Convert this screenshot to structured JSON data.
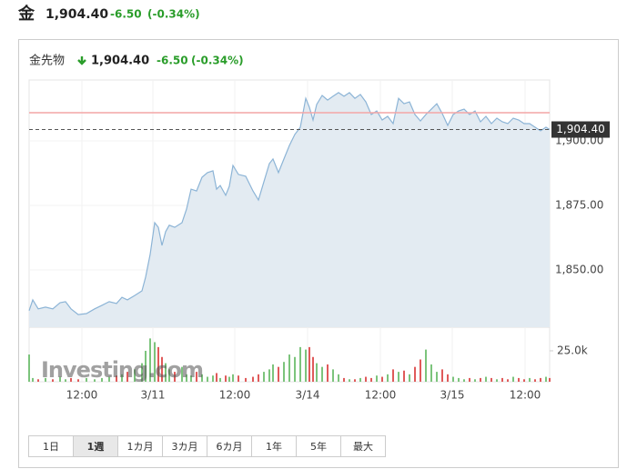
{
  "header": {
    "name": "金",
    "price": "1,904.40",
    "change": "-6.50",
    "change_pct": "(-0.34%)"
  },
  "chart_data": {
    "type": "area",
    "title": "金先物",
    "price": "1,904.40",
    "change": "-6.50",
    "change_pct": "(-0.34%)",
    "color": "#8cb4d6",
    "fill": "#e3ebf2",
    "x": [
      0,
      4,
      10,
      18,
      26,
      34,
      40,
      46,
      54,
      63,
      72,
      80,
      88,
      96,
      102,
      108,
      116,
      124,
      128,
      133,
      138,
      142,
      146,
      150,
      154,
      160,
      168,
      173,
      178,
      184,
      190,
      196,
      202,
      206,
      210,
      216,
      220,
      224,
      230,
      238,
      246,
      252,
      258,
      264,
      268,
      274,
      280,
      286,
      292,
      298,
      304,
      308,
      312,
      316,
      322,
      328,
      334,
      340,
      346,
      352,
      358,
      364,
      370,
      376,
      382,
      388,
      394,
      400,
      406,
      412,
      418,
      424,
      430,
      436,
      442,
      448,
      454,
      460,
      466,
      472,
      478,
      484,
      490,
      496,
      502,
      508,
      514,
      520,
      526,
      532,
      538,
      544,
      550,
      556,
      562,
      568,
      572
    ],
    "values": [
      1834.2,
      1838.4,
      1834.9,
      1835.6,
      1834.9,
      1837.3,
      1837.7,
      1834.9,
      1832.7,
      1833.1,
      1834.9,
      1836.3,
      1837.7,
      1837.0,
      1839.4,
      1838.4,
      1840.1,
      1841.9,
      1847.2,
      1856.0,
      1868.3,
      1866.5,
      1859.5,
      1864.8,
      1867.3,
      1866.5,
      1868.3,
      1873.6,
      1881.3,
      1880.6,
      1885.9,
      1887.7,
      1888.4,
      1881.3,
      1882.7,
      1878.9,
      1882.4,
      1890.5,
      1887.0,
      1886.3,
      1880.6,
      1877.1,
      1884.2,
      1891.2,
      1893.0,
      1887.7,
      1893.0,
      1898.2,
      1902.5,
      1905.3,
      1916.5,
      1913.0,
      1908.1,
      1914.1,
      1917.6,
      1915.8,
      1917.3,
      1918.7,
      1917.3,
      1918.7,
      1916.5,
      1918.0,
      1915.1,
      1910.2,
      1911.6,
      1908.1,
      1909.5,
      1906.7,
      1916.5,
      1914.4,
      1915.1,
      1910.2,
      1907.7,
      1910.2,
      1912.3,
      1914.4,
      1910.6,
      1906.0,
      1910.2,
      1911.6,
      1912.3,
      1910.2,
      1911.6,
      1907.4,
      1909.5,
      1906.7,
      1908.8,
      1907.4,
      1906.7,
      1908.8,
      1908.1,
      1906.7,
      1906.7,
      1905.3,
      1903.9,
      1905.3,
      1904.4
    ],
    "xlim": [
      0,
      572
    ],
    "xticks": [
      {
        "value": 58,
        "label": "12:00"
      },
      {
        "value": 136,
        "label": "3/11"
      },
      {
        "value": 226,
        "label": "12:00"
      },
      {
        "value": 306,
        "label": "3/14"
      },
      {
        "value": 386,
        "label": "12:00"
      },
      {
        "value": 465,
        "label": "3/15"
      },
      {
        "value": 545,
        "label": "12:00"
      }
    ],
    "ylim": [
      1827.8,
      1923.6
    ],
    "yticks": [
      {
        "value": 1850,
        "label": "1,850.00"
      },
      {
        "value": 1875,
        "label": "1,875.00"
      },
      {
        "value": 1900,
        "label": "1,900.00"
      }
    ],
    "last_value": {
      "value": 1904.4,
      "label": "1,904.40"
    },
    "previous_close": 1910.9,
    "previous_close_color": "#f4a6a6",
    "grid": true,
    "volume": {
      "values": [
        22000,
        3000,
        2000,
        3000,
        2000,
        4000,
        2000,
        3000,
        2000,
        3000,
        2000,
        3000,
        4000,
        5000,
        6000,
        8000,
        10000,
        15000,
        25000,
        35000,
        32000,
        28000,
        20000,
        15000,
        10000,
        8000,
        12000,
        6000,
        5000,
        8000,
        6000,
        4000,
        5000,
        7000,
        3000,
        5000,
        4000,
        6000,
        5000,
        3000,
        4000,
        6000,
        8000,
        10000,
        14000,
        12000,
        16000,
        22000,
        20000,
        28000,
        26000,
        28000,
        20000,
        15000,
        12000,
        14000,
        10000,
        6000,
        3000,
        2000,
        2000,
        3000,
        4000,
        3000,
        5000,
        4000,
        6000,
        10000,
        8000,
        9000,
        6000,
        12000,
        18000,
        26000,
        14000,
        8000,
        10000,
        6000,
        4000,
        3000,
        2000,
        3000,
        2000,
        3000,
        4000,
        3000,
        2000,
        3000,
        2000,
        4000,
        3000,
        2000,
        3000,
        2000,
        3000,
        4000,
        3000
      ],
      "ylim": [
        0,
        42600
      ],
      "yticks": [
        {
          "value": 25000,
          "label": "25.0k"
        }
      ],
      "up_color": "#7cc47c",
      "down_color": "#e05a5a"
    },
    "watermark": "Investing.com"
  },
  "range_buttons": {
    "labels": [
      "1日",
      "1週",
      "1カ月",
      "3カ月",
      "6カ月",
      "1年",
      "5年",
      "最大"
    ],
    "selected": 1
  }
}
